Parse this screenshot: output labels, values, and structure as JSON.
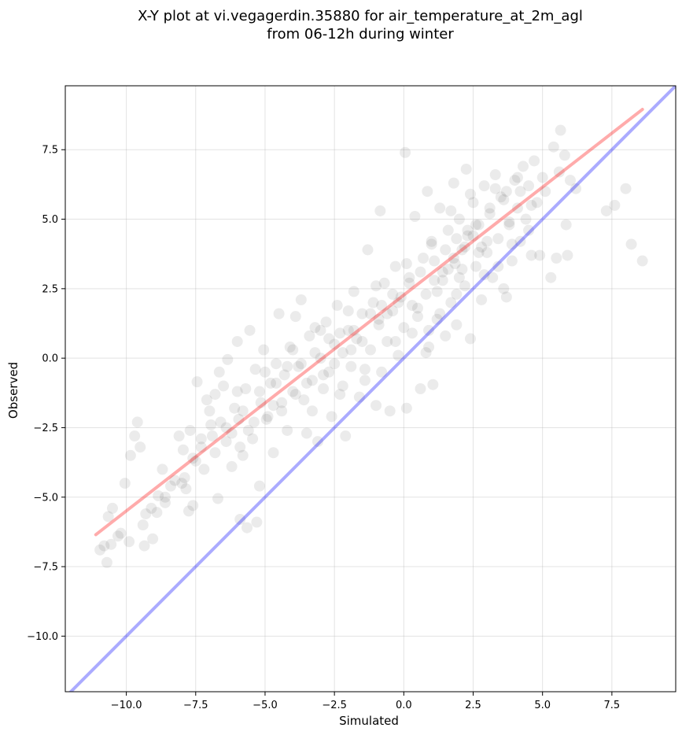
{
  "chart_data": {
    "type": "scatter",
    "title_lines": [
      "X-Y plot at vi.vegagerdin.35880 for air_temperature_at_2m_agl",
      "from 06-12h during winter"
    ],
    "xlabel": "Simulated",
    "ylabel": "Observed",
    "xlim": [
      -12.2,
      9.8
    ],
    "ylim": [
      -12.0,
      9.8
    ],
    "x_ticks": [
      -10.0,
      -7.5,
      -5.0,
      -2.5,
      0.0,
      2.5,
      5.0,
      7.5
    ],
    "x_tick_labels": [
      "−10.0",
      "−7.5",
      "−5.0",
      "−2.5",
      "0.0",
      "2.5",
      "5.0",
      "7.5"
    ],
    "y_ticks": [
      -10.0,
      -7.5,
      -5.0,
      -2.5,
      0.0,
      2.5,
      5.0,
      7.5
    ],
    "y_tick_labels": [
      "−10.0",
      "−7.5",
      "−5.0",
      "−2.5",
      "0.0",
      "2.5",
      "5.0",
      "7.5"
    ],
    "grid": true,
    "point_color": "#000000",
    "point_opacity": 0.08,
    "identity_line": {
      "color": "#0000ff",
      "opacity": 0.33,
      "x": [
        -12.2,
        9.8
      ],
      "y": [
        -12.2,
        9.8
      ]
    },
    "fit_line": {
      "color": "#ff0000",
      "opacity": 0.33,
      "x": [
        -11.1,
        8.6
      ],
      "y": [
        -6.35,
        8.95
      ]
    },
    "points": [
      [
        -10.95,
        -6.9
      ],
      [
        -10.8,
        -6.75
      ],
      [
        -10.7,
        -7.35
      ],
      [
        -10.55,
        -6.7
      ],
      [
        -10.65,
        -5.7
      ],
      [
        -10.5,
        -5.4
      ],
      [
        -10.3,
        -6.4
      ],
      [
        -10.05,
        -4.5
      ],
      [
        -9.9,
        -6.6
      ],
      [
        -9.85,
        -3.5
      ],
      [
        -9.7,
        -2.8
      ],
      [
        -9.6,
        -2.3
      ],
      [
        -9.5,
        -3.2
      ],
      [
        -9.4,
        -6.0
      ],
      [
        -9.35,
        -6.75
      ],
      [
        -9.1,
        -5.4
      ],
      [
        -9.05,
        -6.5
      ],
      [
        -8.9,
        -5.55
      ],
      [
        -8.85,
        -4.95
      ],
      [
        -8.7,
        -4.0
      ],
      [
        -8.6,
        -5.2
      ],
      [
        -8.4,
        -4.6
      ],
      [
        -8.25,
        -4.4
      ],
      [
        -8.1,
        -2.8
      ],
      [
        -7.95,
        -3.3
      ],
      [
        -7.85,
        -4.7
      ],
      [
        -7.75,
        -5.5
      ],
      [
        -7.7,
        -2.6
      ],
      [
        -7.6,
        -5.3
      ],
      [
        -7.5,
        -3.7
      ],
      [
        -7.45,
        -0.85
      ],
      [
        -7.3,
        -3.2
      ],
      [
        -7.2,
        -4.0
      ],
      [
        -7.1,
        -1.5
      ],
      [
        -6.95,
        -2.4
      ],
      [
        -6.8,
        -1.3
      ],
      [
        -6.7,
        -5.05
      ],
      [
        -6.65,
        -0.5
      ],
      [
        -6.5,
        -1.0
      ],
      [
        -6.4,
        -2.5
      ],
      [
        -6.35,
        -0.05
      ],
      [
        -6.2,
        -3.9
      ],
      [
        -6.1,
        -1.8
      ],
      [
        -6.0,
        0.6
      ],
      [
        -5.95,
        -2.2
      ],
      [
        -5.9,
        -5.8
      ],
      [
        -5.8,
        -3.5
      ],
      [
        -5.7,
        -1.1
      ],
      [
        -5.65,
        -6.1
      ],
      [
        -5.55,
        1.0
      ],
      [
        -5.45,
        -2.9
      ],
      [
        -5.35,
        -0.4
      ],
      [
        -5.3,
        -5.9
      ],
      [
        -5.2,
        -4.6
      ],
      [
        -5.15,
        -1.6
      ],
      [
        -5.05,
        0.3
      ],
      [
        -4.95,
        -2.2
      ],
      [
        -4.8,
        -0.9
      ],
      [
        -4.7,
        -3.4
      ],
      [
        -4.6,
        -0.2
      ],
      [
        -4.5,
        1.6
      ],
      [
        -4.4,
        -1.9
      ],
      [
        -4.3,
        -0.6
      ],
      [
        -4.2,
        -2.6
      ],
      [
        -4.1,
        0.4
      ],
      [
        -4.0,
        -1.2
      ],
      [
        -3.9,
        1.5
      ],
      [
        -3.8,
        -0.3
      ],
      [
        -3.7,
        2.1
      ],
      [
        -3.6,
        -1.5
      ],
      [
        -3.5,
        -2.7
      ],
      [
        -3.4,
        0.8
      ],
      [
        -3.3,
        -0.8
      ],
      [
        -3.2,
        1.1
      ],
      [
        -3.1,
        -3.0
      ],
      [
        -3.0,
        0.0
      ],
      [
        -2.9,
        -1.1
      ],
      [
        -2.8,
        1.3
      ],
      [
        -2.7,
        -0.5
      ],
      [
        -2.6,
        -2.1
      ],
      [
        -2.5,
        0.5
      ],
      [
        -2.4,
        1.9
      ],
      [
        -2.3,
        -1.3
      ],
      [
        -2.2,
        0.2
      ],
      [
        -2.1,
        -2.8
      ],
      [
        -2.0,
        1.0
      ],
      [
        -1.9,
        -0.3
      ],
      [
        -1.8,
        2.4
      ],
      [
        -1.7,
        0.7
      ],
      [
        -1.6,
        -1.4
      ],
      [
        -1.5,
        1.6
      ],
      [
        -1.4,
        -0.8
      ],
      [
        -1.3,
        3.9
      ],
      [
        -1.2,
        0.3
      ],
      [
        -1.1,
        2.0
      ],
      [
        -1.0,
        -1.7
      ],
      [
        -0.9,
        1.2
      ],
      [
        -0.85,
        5.3
      ],
      [
        -0.8,
        -0.5
      ],
      [
        -0.7,
        2.7
      ],
      [
        -0.6,
        0.6
      ],
      [
        -0.5,
        -1.9
      ],
      [
        -0.4,
        1.7
      ],
      [
        -0.3,
        3.3
      ],
      [
        -0.2,
        0.1
      ],
      [
        -0.1,
        2.2
      ],
      [
        0.0,
        1.1
      ],
      [
        0.05,
        7.4
      ],
      [
        0.1,
        -1.8
      ],
      [
        0.2,
        2.9
      ],
      [
        0.3,
        0.9
      ],
      [
        0.4,
        5.1
      ],
      [
        0.5,
        1.8
      ],
      [
        0.6,
        -1.1
      ],
      [
        0.7,
        3.6
      ],
      [
        0.8,
        2.3
      ],
      [
        0.85,
        6.0
      ],
      [
        0.9,
        0.4
      ],
      [
        1.0,
        4.2
      ],
      [
        1.05,
        -0.95
      ],
      [
        1.1,
        2.8
      ],
      [
        1.2,
        1.4
      ],
      [
        1.3,
        5.4
      ],
      [
        1.4,
        3.1
      ],
      [
        1.5,
        0.8
      ],
      [
        1.6,
        4.6
      ],
      [
        1.7,
        2.0
      ],
      [
        1.8,
        6.3
      ],
      [
        1.85,
        3.4
      ],
      [
        1.9,
        1.2
      ],
      [
        2.0,
        5.0
      ],
      [
        2.1,
        3.9
      ],
      [
        2.2,
        2.6
      ],
      [
        2.25,
        6.8
      ],
      [
        2.3,
        4.4
      ],
      [
        2.4,
        0.7
      ],
      [
        2.5,
        5.6
      ],
      [
        2.6,
        3.3
      ],
      [
        2.7,
        4.8
      ],
      [
        2.8,
        2.1
      ],
      [
        2.9,
        6.2
      ],
      [
        3.0,
        3.8
      ],
      [
        3.1,
        5.2
      ],
      [
        3.2,
        2.9
      ],
      [
        3.3,
        6.6
      ],
      [
        3.4,
        4.3
      ],
      [
        3.5,
        5.8
      ],
      [
        3.6,
        2.5
      ],
      [
        3.7,
        6.0
      ],
      [
        3.8,
        4.9
      ],
      [
        3.9,
        3.5
      ],
      [
        4.0,
        6.4
      ],
      [
        4.1,
        5.4
      ],
      [
        4.2,
        4.2
      ],
      [
        4.3,
        6.9
      ],
      [
        4.4,
        5.0
      ],
      [
        4.5,
        6.2
      ],
      [
        4.6,
        3.7
      ],
      [
        4.7,
        7.1
      ],
      [
        4.8,
        5.6
      ],
      [
        4.9,
        3.7
      ],
      [
        5.0,
        6.5
      ],
      [
        5.1,
        6.0
      ],
      [
        5.3,
        2.9
      ],
      [
        5.4,
        7.6
      ],
      [
        5.5,
        3.6
      ],
      [
        5.6,
        6.7
      ],
      [
        5.65,
        8.2
      ],
      [
        5.8,
        7.3
      ],
      [
        5.85,
        4.8
      ],
      [
        5.9,
        3.7
      ],
      [
        6.0,
        6.4
      ],
      [
        6.2,
        6.1
      ],
      [
        7.3,
        5.3
      ],
      [
        7.6,
        5.5
      ],
      [
        8.0,
        6.1
      ],
      [
        8.2,
        4.1
      ],
      [
        8.6,
        3.5
      ],
      [
        -8.0,
        -4.5
      ],
      [
        -7.3,
        -2.9
      ],
      [
        -6.6,
        -2.3
      ],
      [
        -6.2,
        -2.7
      ],
      [
        -5.8,
        -1.9
      ],
      [
        -5.2,
        -1.2
      ],
      [
        -4.6,
        -0.9
      ],
      [
        -4.2,
        -0.3
      ],
      [
        -3.7,
        -0.2
      ],
      [
        -3.2,
        0.2
      ],
      [
        -2.7,
        0.7
      ],
      [
        -2.3,
        0.9
      ],
      [
        -1.8,
        1.0
      ],
      [
        -1.2,
        1.6
      ],
      [
        -0.8,
        1.9
      ],
      [
        -0.4,
        2.3
      ],
      [
        0.2,
        2.7
      ],
      [
        0.6,
        3.1
      ],
      [
        1.1,
        3.5
      ],
      [
        1.5,
        3.9
      ],
      [
        1.9,
        4.3
      ],
      [
        2.3,
        4.6
      ],
      [
        2.6,
        4.8
      ],
      [
        3.1,
        5.4
      ],
      [
        3.6,
        5.7
      ],
      [
        4.2,
        6.0
      ],
      [
        -6.4,
        -3.0
      ],
      [
        -5.6,
        -2.6
      ],
      [
        -4.9,
        -2.1
      ],
      [
        -3.9,
        -1.3
      ],
      [
        -2.9,
        -0.6
      ],
      [
        -1.9,
        0.3
      ],
      [
        -0.9,
        1.4
      ],
      [
        0.3,
        1.9
      ],
      [
        1.2,
        2.4
      ],
      [
        2.1,
        3.2
      ],
      [
        3.0,
        4.2
      ],
      [
        3.8,
        4.8
      ],
      [
        4.6,
        5.5
      ],
      [
        -7.0,
        -1.9
      ],
      [
        -6.0,
        -1.2
      ],
      [
        -5.0,
        -0.5
      ],
      [
        -4.0,
        0.3
      ],
      [
        -3.0,
        1.0
      ],
      [
        -2.0,
        1.7
      ],
      [
        -1.0,
        2.6
      ],
      [
        0.1,
        3.4
      ],
      [
        1.0,
        4.1
      ],
      [
        1.7,
        5.3
      ],
      [
        2.4,
        5.9
      ],
      [
        3.3,
        6.1
      ],
      [
        4.1,
        6.5
      ],
      [
        1.6,
        3.2
      ],
      [
        1.8,
        3.6
      ],
      [
        2.0,
        2.9
      ],
      [
        2.2,
        4.0
      ],
      [
        2.5,
        4.4
      ],
      [
        2.7,
        3.8
      ],
      [
        1.4,
        2.8
      ],
      [
        1.9,
        2.3
      ],
      [
        2.8,
        4.0
      ],
      [
        3.4,
        3.3
      ],
      [
        3.7,
        2.2
      ],
      [
        0.5,
        1.5
      ],
      [
        0.9,
        1.0
      ],
      [
        -0.2,
        2.0
      ],
      [
        -0.6,
        1.6
      ],
      [
        -1.5,
        0.6
      ],
      [
        -2.5,
        -0.2
      ],
      [
        -3.5,
        -0.9
      ],
      [
        -4.4,
        -1.6
      ],
      [
        -5.4,
        -2.3
      ],
      [
        -6.8,
        -3.4
      ],
      [
        -7.9,
        -4.3
      ],
      [
        -8.6,
        -5.0
      ],
      [
        -9.3,
        -5.6
      ],
      [
        -10.2,
        -6.3
      ],
      [
        -7.6,
        -3.6
      ],
      [
        -6.9,
        -2.8
      ],
      [
        -5.9,
        -3.2
      ],
      [
        -4.7,
        -1.7
      ],
      [
        -3.3,
        -1.9
      ],
      [
        -2.2,
        -1.0
      ],
      [
        -1.4,
        -0.4
      ],
      [
        -0.3,
        0.6
      ],
      [
        0.8,
        0.2
      ],
      [
        1.3,
        1.6
      ],
      [
        2.9,
        3.0
      ],
      [
        3.9,
        4.1
      ],
      [
        4.5,
        4.6
      ]
    ]
  }
}
